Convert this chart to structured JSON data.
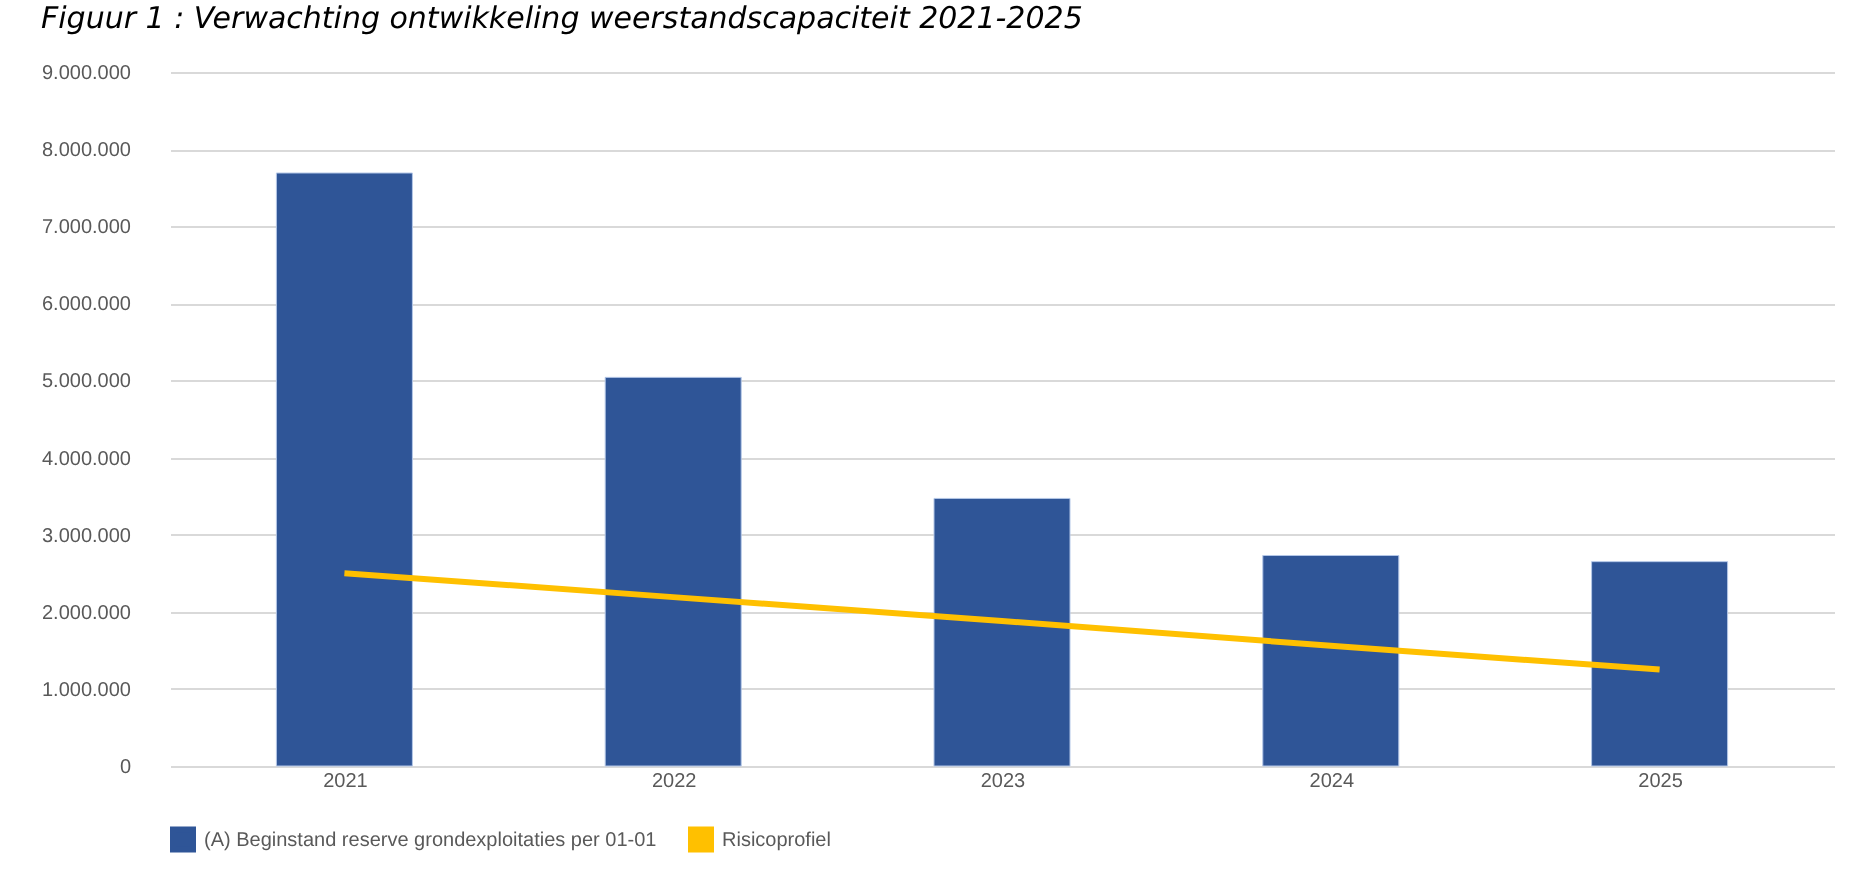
{
  "chart_data": {
    "type": "bar",
    "title": "Figuur 1 : Verwachting ontwikkeling weerstandscapaciteit 2021-2025",
    "categories": [
      "2021",
      "2022",
      "2023",
      "2024",
      "2025"
    ],
    "series": [
      {
        "name": "(A) Beginstand reserve grondexploitaties per 01-01",
        "color": "#2f5597",
        "values": [
          7690000,
          5040000,
          3470000,
          2730000,
          2650000
        ]
      },
      {
        "name": "Risicoprofiel",
        "type": "line",
        "color": "#ffc000",
        "values": [
          2500000,
          2190000,
          1880000,
          1560000,
          1250000
        ]
      }
    ],
    "ylim": [
      0,
      9000000
    ],
    "yticks": [
      {
        "value": 0,
        "label": "0"
      },
      {
        "value": 1000000,
        "label": "1.000.000"
      },
      {
        "value": 2000000,
        "label": "2.000.000"
      },
      {
        "value": 3000000,
        "label": "3.000.000"
      },
      {
        "value": 4000000,
        "label": "4.000.000"
      },
      {
        "value": 5000000,
        "label": "5.000.000"
      },
      {
        "value": 6000000,
        "label": "6.000.000"
      },
      {
        "value": 7000000,
        "label": "7.000.000"
      },
      {
        "value": 8000000,
        "label": "8.000.000"
      },
      {
        "value": 9000000,
        "label": "9.000.000"
      }
    ],
    "grid": "y",
    "legend": "bottom",
    "marker": "none"
  }
}
